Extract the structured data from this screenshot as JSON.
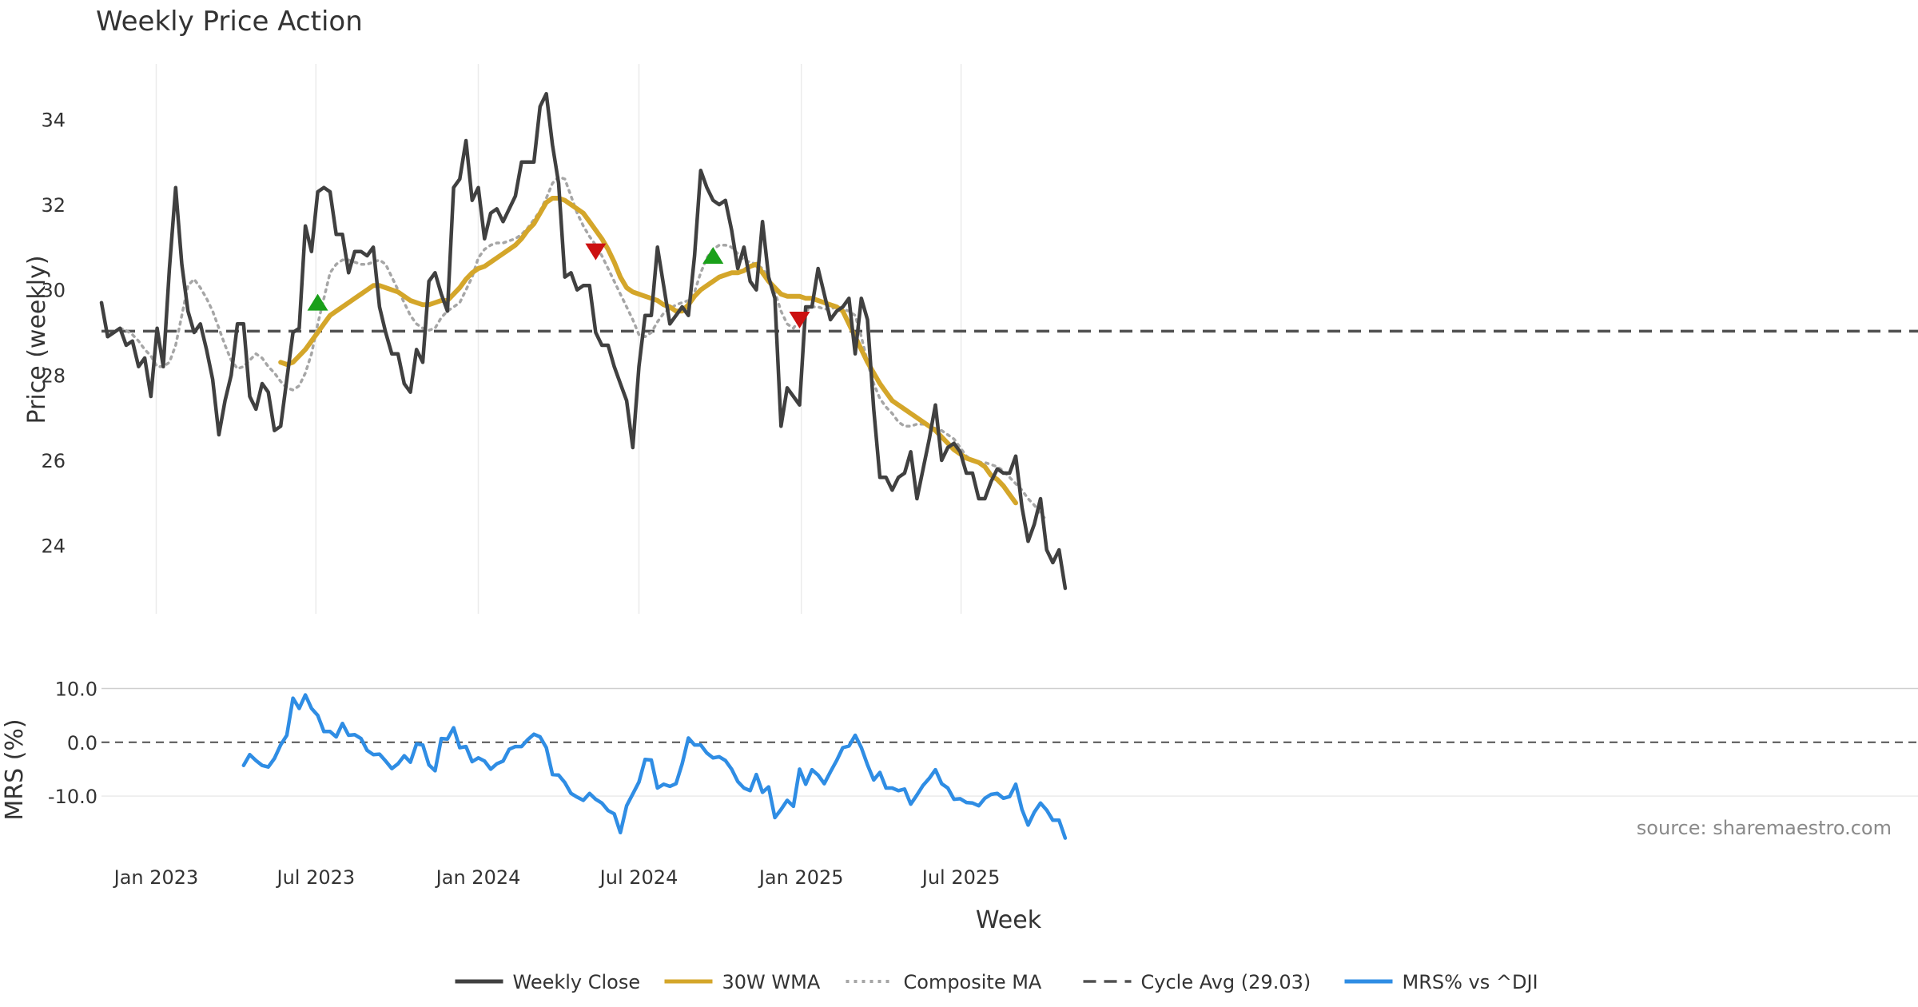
{
  "chart_data": {
    "type": "line",
    "title": "Weekly Price Action",
    "xlabel": "Week",
    "x_start": "2022-10-31",
    "x_ticks": [
      "Jan 2023",
      "Jul 2023",
      "Jan 2024",
      "Jul 2024",
      "Jan 2025",
      "Jul 2025"
    ],
    "price_panel": {
      "ylabel": "Price (weekly)",
      "ylim": [
        22.4,
        35.3
      ],
      "y_ticks": [
        "24",
        "26",
        "28",
        "30",
        "32",
        "34"
      ],
      "grid": "x",
      "cycle_avg": 29.03,
      "series": [
        {
          "name": "Weekly Close",
          "color": "#404040",
          "style": "solid",
          "values": [
            29.7,
            28.9,
            29.0,
            29.1,
            28.7,
            28.8,
            28.2,
            28.4,
            27.5,
            29.1,
            28.2,
            30.5,
            32.4,
            30.6,
            29.5,
            29.0,
            29.2,
            28.6,
            27.9,
            26.6,
            27.4,
            28.0,
            29.2,
            29.2,
            27.5,
            27.2,
            27.8,
            27.6,
            26.7,
            26.8,
            27.9,
            29.0,
            29.1,
            31.5,
            30.9,
            32.3,
            32.4,
            32.3,
            31.3,
            31.3,
            30.4,
            30.9,
            30.9,
            30.8,
            31.0,
            29.6,
            29.0,
            28.5,
            28.5,
            27.8,
            27.6,
            28.6,
            28.3,
            30.2,
            30.4,
            29.9,
            29.5,
            32.4,
            32.6,
            33.5,
            32.1,
            32.4,
            31.2,
            31.8,
            31.9,
            31.6,
            31.9,
            32.2,
            33.0,
            33.0,
            33.0,
            34.3,
            34.6,
            33.4,
            32.5,
            30.3,
            30.4,
            30.0,
            30.1,
            30.1,
            29.0,
            28.7,
            28.7,
            28.2,
            27.8,
            27.4,
            26.3,
            28.2,
            29.4,
            29.4,
            31.0,
            30.1,
            29.2,
            29.4,
            29.6,
            29.4,
            30.8,
            32.8,
            32.4,
            32.1,
            32.0,
            32.1,
            31.4,
            30.5,
            31.0,
            30.2,
            30.0,
            31.6,
            30.3,
            29.8,
            26.8,
            27.7,
            27.5,
            27.3,
            29.6,
            29.6,
            30.5,
            29.9,
            29.3,
            29.5,
            29.6,
            29.8,
            28.5,
            29.8,
            29.3,
            27.2,
            25.6,
            25.6,
            25.3,
            25.6,
            25.7,
            26.2,
            25.1,
            25.8,
            26.5,
            27.3,
            26.0,
            26.3,
            26.4,
            26.2,
            25.7,
            25.7,
            25.1,
            25.1,
            25.5,
            25.8,
            25.7,
            25.7,
            26.1,
            24.9,
            24.1,
            24.5,
            25.1,
            23.9,
            23.6,
            23.9,
            23.0
          ]
        },
        {
          "name": "30W WMA",
          "color": "#d4a62a",
          "style": "solid",
          "start_index": 29,
          "values": [
            28.3,
            28.25,
            28.3,
            28.45,
            28.6,
            28.8,
            29.0,
            29.2,
            29.4,
            29.5,
            29.6,
            29.7,
            29.8,
            29.9,
            30.0,
            30.1,
            30.1,
            30.05,
            30.0,
            29.95,
            29.85,
            29.75,
            29.7,
            29.65,
            29.65,
            29.7,
            29.75,
            29.75,
            29.9,
            30.05,
            30.25,
            30.4,
            30.5,
            30.55,
            30.65,
            30.75,
            30.85,
            30.95,
            31.05,
            31.2,
            31.4,
            31.55,
            31.8,
            32.05,
            32.15,
            32.15,
            32.1,
            32.0,
            31.9,
            31.8,
            31.6,
            31.4,
            31.2,
            30.95,
            30.65,
            30.3,
            30.05,
            29.95,
            29.9,
            29.85,
            29.8,
            29.75,
            29.65,
            29.6,
            29.5,
            29.5,
            29.65,
            29.85,
            30.0,
            30.1,
            30.2,
            30.3,
            30.35,
            30.4,
            30.4,
            30.45,
            30.55,
            30.6,
            30.4,
            30.2,
            30.05,
            29.9,
            29.85,
            29.85,
            29.85,
            29.8,
            29.8,
            29.75,
            29.7,
            29.65,
            29.6,
            29.5,
            29.2,
            28.9,
            28.6,
            28.3,
            28.05,
            27.8,
            27.6,
            27.4,
            27.3,
            27.2,
            27.1,
            27.0,
            26.9,
            26.8,
            26.7,
            26.55,
            26.4,
            26.25,
            26.15,
            26.05,
            26.0,
            25.95,
            25.85,
            25.65,
            25.55,
            25.4,
            25.2,
            25.0
          ]
        },
        {
          "name": "Composite MA",
          "color": "#a6a6a6",
          "style": "dotted",
          "start_index": 3,
          "values": [
            29.1,
            29.05,
            28.95,
            28.8,
            28.6,
            28.45,
            28.2,
            28.2,
            28.3,
            28.7,
            29.4,
            30.1,
            30.25,
            30.05,
            29.8,
            29.5,
            29.1,
            28.7,
            28.35,
            28.15,
            28.2,
            28.35,
            28.5,
            28.4,
            28.2,
            28.05,
            27.85,
            27.7,
            27.65,
            27.75,
            28.05,
            28.5,
            29.2,
            29.8,
            30.4,
            30.6,
            30.7,
            30.7,
            30.65,
            30.6,
            30.6,
            30.65,
            30.7,
            30.6,
            30.3,
            30.0,
            29.7,
            29.4,
            29.2,
            29.1,
            29.05,
            29.1,
            29.35,
            29.5,
            29.6,
            29.7,
            30.0,
            30.3,
            30.75,
            30.95,
            31.05,
            31.1,
            31.1,
            31.15,
            31.2,
            31.3,
            31.45,
            31.65,
            31.85,
            32.15,
            32.5,
            32.65,
            32.6,
            32.2,
            31.8,
            31.5,
            31.25,
            31.05,
            30.8,
            30.5,
            30.2,
            29.9,
            29.6,
            29.3,
            28.95,
            28.9,
            29.0,
            29.25,
            29.45,
            29.55,
            29.65,
            29.7,
            29.75,
            29.95,
            30.4,
            30.75,
            30.95,
            31.05,
            31.05,
            31.0,
            30.85,
            30.7,
            30.65,
            30.6,
            30.5,
            30.3,
            29.95,
            29.5,
            29.2,
            29.1,
            29.3,
            29.5,
            29.6,
            29.6,
            29.55,
            29.55,
            29.6,
            29.55,
            29.5,
            29.4,
            28.9,
            28.3,
            27.8,
            27.45,
            27.25,
            27.1,
            26.9,
            26.8,
            26.8,
            26.85,
            26.85,
            26.8,
            26.75,
            26.7,
            26.6,
            26.5,
            26.3,
            26.1,
            26.0,
            25.95,
            25.95,
            25.9,
            25.85,
            25.75,
            25.6,
            25.45,
            25.3,
            25.1,
            24.95,
            24.75,
            24.6
          ]
        }
      ],
      "markers": [
        {
          "type": "buy",
          "index": 35,
          "value": 29.7,
          "color": "#1aa01a"
        },
        {
          "type": "sell",
          "index": 80,
          "value": 30.9,
          "color": "#cc1111"
        },
        {
          "type": "buy",
          "index": 99,
          "value": 30.8,
          "color": "#1aa01a"
        },
        {
          "type": "sell",
          "index": 113,
          "value": 29.3,
          "color": "#cc1111"
        }
      ]
    },
    "mrs_panel": {
      "ylabel": "MRS (%)",
      "ylim": [
        -19.5,
        12.0
      ],
      "y_ticks": [
        10,
        0,
        -10
      ],
      "y_tick_labels": [
        "10.0",
        "0.0",
        "-10.0"
      ],
      "series": [
        {
          "name": "MRS% vs ^DJI",
          "color": "#2f8de4",
          "start_index": 23,
          "values": [
            -4.3,
            -2.3,
            -3.4,
            -4.3,
            -4.6,
            -3.0,
            -0.5,
            1.3,
            8.2,
            6.3,
            8.8,
            6.3,
            5.0,
            2.0,
            2.0,
            1.0,
            3.5,
            1.3,
            1.4,
            0.7,
            -1.5,
            -2.3,
            -2.2,
            -3.5,
            -4.9,
            -4.0,
            -2.5,
            -3.7,
            -0.3,
            -0.5,
            -4.2,
            -5.3,
            0.7,
            0.6,
            2.7,
            -1.0,
            -0.8,
            -3.6,
            -2.9,
            -3.5,
            -5.0,
            -4.0,
            -3.5,
            -1.3,
            -0.8,
            -0.8,
            0.5,
            1.5,
            1.0,
            -1.0,
            -6.0,
            -6.1,
            -7.5,
            -9.5,
            -10.2,
            -10.8,
            -9.5,
            -10.6,
            -11.3,
            -12.7,
            -13.3,
            -16.8,
            -11.8,
            -9.6,
            -7.4,
            -3.2,
            -3.3,
            -8.5,
            -7.8,
            -8.2,
            -7.7,
            -4.0,
            0.8,
            -0.5,
            -0.5,
            -2.0,
            -2.9,
            -2.7,
            -3.4,
            -5.0,
            -7.3,
            -8.5,
            -9.0,
            -6.0,
            -9.3,
            -8.3,
            -14.0,
            -12.5,
            -10.8,
            -11.9,
            -5.0,
            -7.8,
            -5.1,
            -6.1,
            -7.7,
            -5.5,
            -3.4,
            -1.0,
            -0.7,
            1.3,
            -1.0,
            -4.2,
            -7.0,
            -5.6,
            -8.5,
            -8.5,
            -9.0,
            -8.7,
            -11.5,
            -9.8,
            -8.0,
            -6.7,
            -5.1,
            -7.7,
            -8.5,
            -10.6,
            -10.5,
            -11.2,
            -11.3,
            -11.8,
            -10.4,
            -9.7,
            -9.5,
            -10.4,
            -10.1,
            -7.8,
            -12.5,
            -15.4,
            -13.0,
            -11.3,
            -12.6,
            -14.5,
            -14.5,
            -17.8
          ]
        }
      ]
    },
    "legend": {
      "placement": "bottom-center",
      "items": [
        {
          "label": "Weekly Close",
          "color": "#404040",
          "style": "solid"
        },
        {
          "label": "30W WMA",
          "color": "#d4a62a",
          "style": "solid"
        },
        {
          "label": "Composite MA",
          "color": "#a6a6a6",
          "style": "dotted"
        },
        {
          "label": "Cycle Avg (29.03)",
          "color": "#505050",
          "style": "dashed"
        },
        {
          "label": "MRS% vs ^DJI",
          "color": "#2f8de4",
          "style": "solid"
        }
      ]
    },
    "source_note": "source: sharemaestro.com"
  }
}
